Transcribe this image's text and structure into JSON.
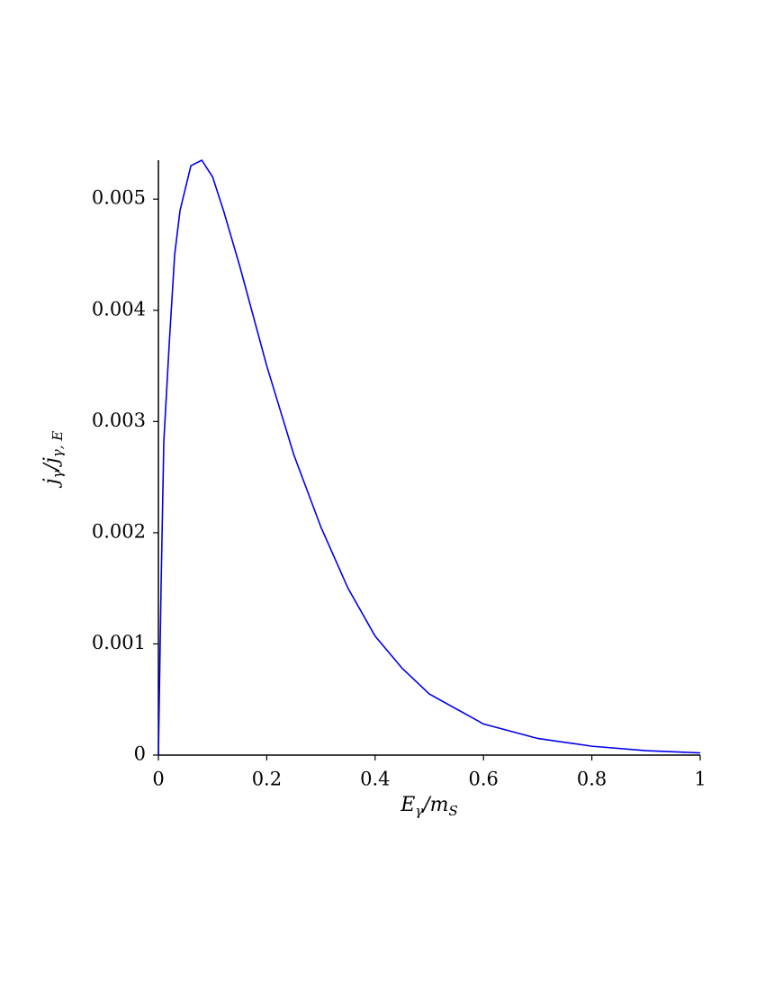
{
  "chart_data": {
    "type": "line",
    "xlabel": [
      {
        "text": "E",
        "sub": "γ"
      },
      {
        "text": "/m",
        "sub": "S"
      }
    ],
    "ylabel": [
      {
        "text": "j",
        "sub": "γ"
      },
      {
        "text": "/j",
        "sub": "γ, E"
      }
    ],
    "x": [
      0,
      0.005,
      0.01,
      0.02,
      0.03,
      0.04,
      0.05,
      0.06,
      0.08,
      0.1,
      0.12,
      0.15,
      0.2,
      0.25,
      0.3,
      0.35,
      0.4,
      0.45,
      0.5,
      0.6,
      0.7,
      0.8,
      0.9,
      1
    ],
    "series": [
      {
        "color": "#0000ee",
        "values": [
          0,
          0.00153,
          0.00282,
          0.0037,
          0.0045,
          0.0049,
          0.0051,
          0.0053,
          0.00535,
          0.0052,
          0.0049,
          0.0044,
          0.0035,
          0.0027,
          0.00205,
          0.0015,
          0.00107,
          0.00078,
          0.00055,
          0.00028,
          0.00015,
          8e-05,
          4e-05,
          2e-05
        ]
      }
    ],
    "xlim": [
      0,
      1
    ],
    "xticks": [
      0,
      0.2,
      0.4,
      0.6,
      0.8,
      1
    ],
    "ylim": [
      0,
      0.00535
    ],
    "yticks": [
      0,
      0.001,
      0.002,
      0.003,
      0.004,
      0.005
    ],
    "grid": false
  }
}
